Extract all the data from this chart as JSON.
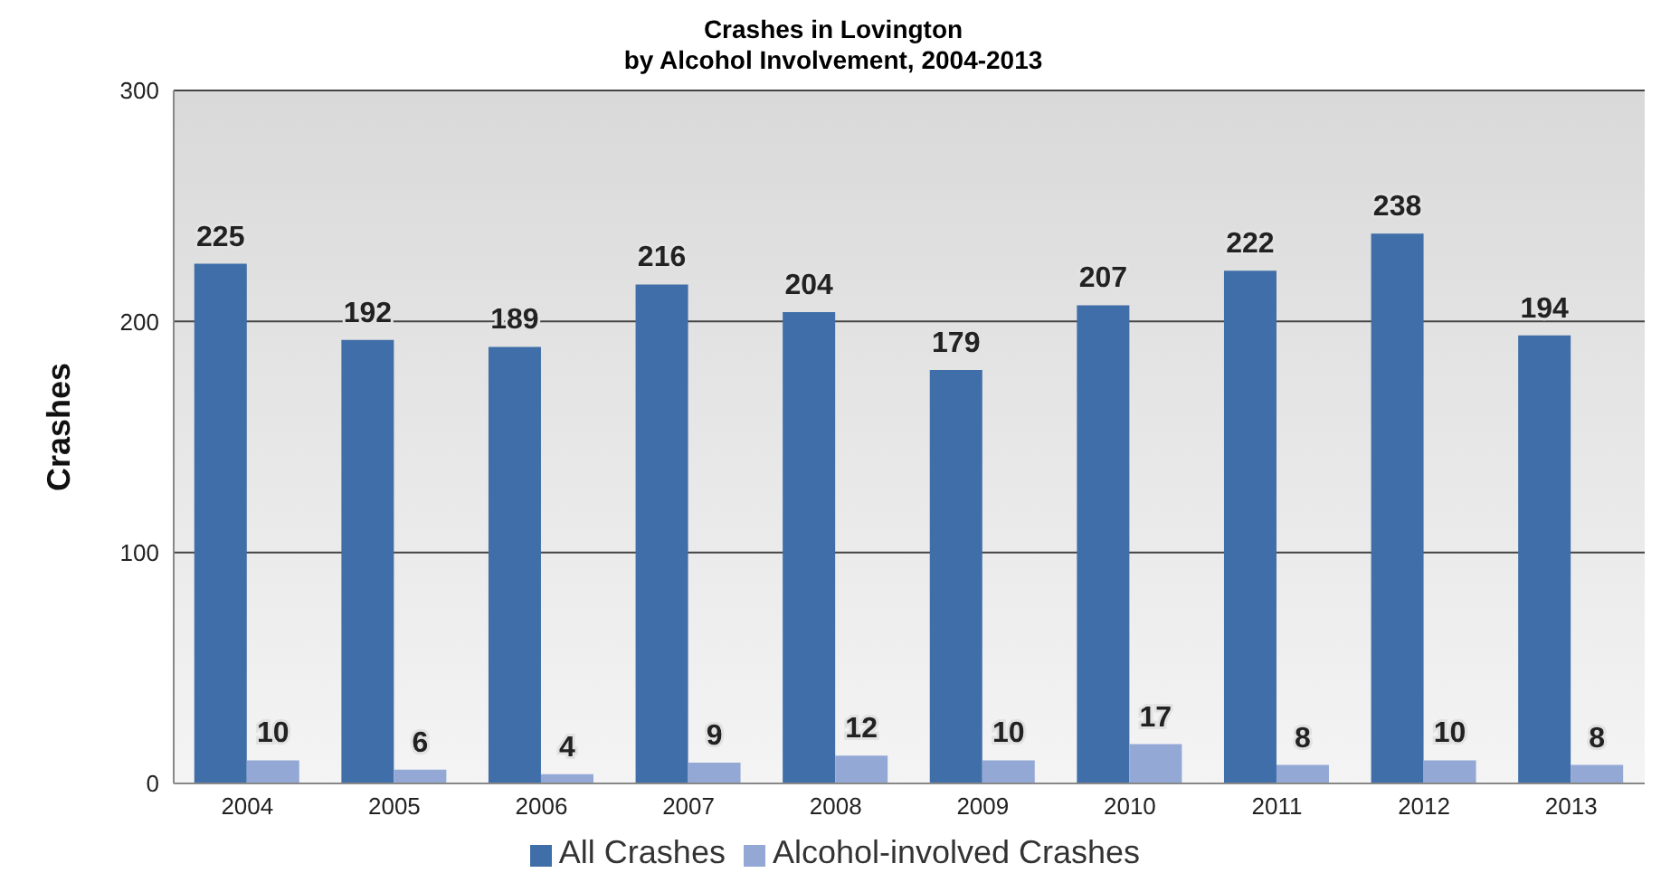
{
  "chart_data": {
    "type": "bar",
    "title": "Crashes in Lovington\nby Alcohol Involvement, 2004-2013",
    "ylabel": "Crashes",
    "categories": [
      "2004",
      "2005",
      "2006",
      "2007",
      "2008",
      "2009",
      "2010",
      "2011",
      "2012",
      "2013"
    ],
    "series": [
      {
        "name": "All Crashes",
        "color": "#3f6ea8",
        "values": [
          225,
          192,
          189,
          216,
          204,
          179,
          207,
          222,
          238,
          194
        ]
      },
      {
        "name": "Alcohol-involved Crashes",
        "color": "#94a8d6",
        "values": [
          10,
          6,
          4,
          9,
          12,
          10,
          17,
          8,
          10,
          8
        ]
      }
    ],
    "ylim": [
      0,
      300
    ],
    "yticks": [
      0,
      100,
      200,
      300
    ],
    "grid": "y",
    "legend": "bottom",
    "data_labels": true
  }
}
